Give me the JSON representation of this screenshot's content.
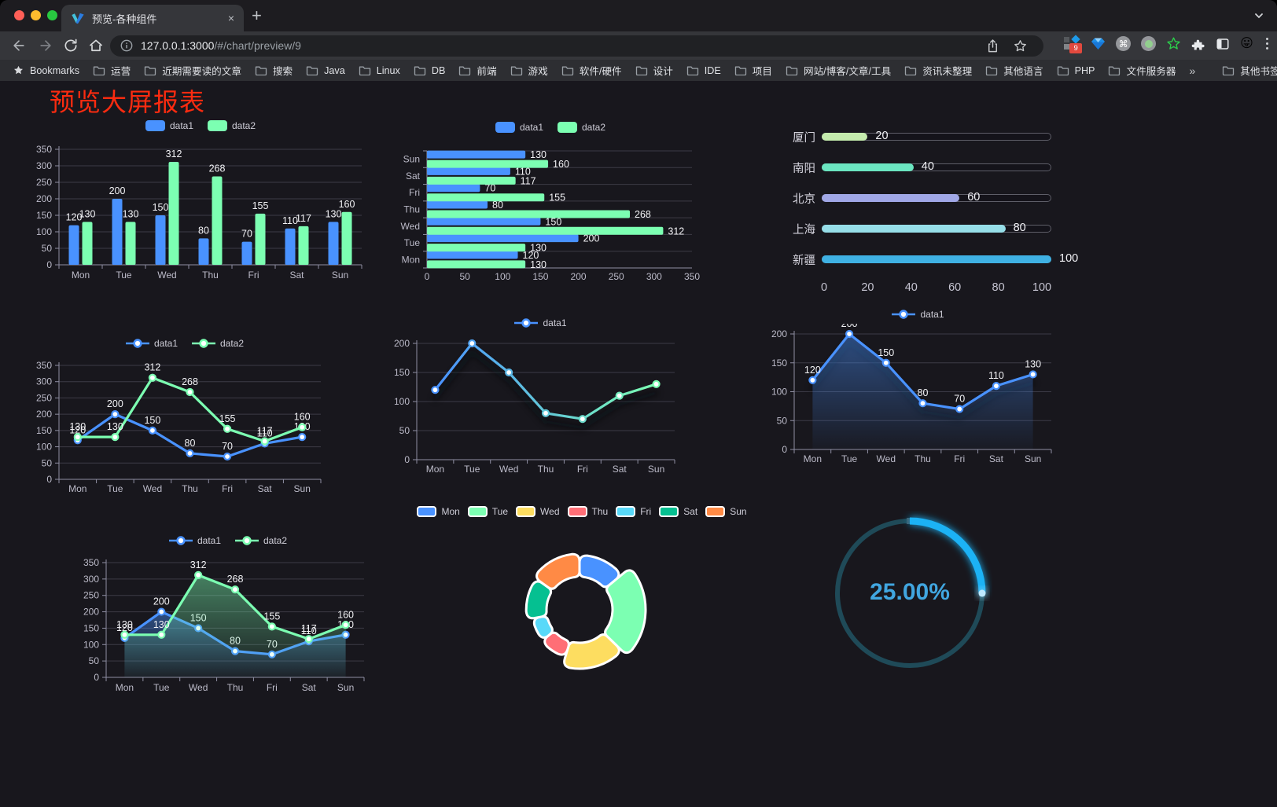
{
  "browser": {
    "tab_title": "预览-各种组件",
    "new_tab_label": "+",
    "tab_close_label": "×",
    "url_host": "127.0.0.1:3000",
    "url_path": "/#/chart/preview/9",
    "bookmarks_root": "Bookmarks",
    "bookmark_folders": [
      "运营",
      "近期需要读的文章",
      "搜索",
      "Java",
      "Linux",
      "DB",
      "前端",
      "游戏",
      "软件/硬件",
      "设计",
      "IDE",
      "项目",
      "网站/博客/文章/工具",
      "资讯未整理",
      "其他语言",
      "PHP",
      "文件服务器"
    ],
    "bookmarks_overflow": "»",
    "other_bookmarks": "其他书签",
    "extension_badge": "9",
    "window_control_colors": [
      "#ff5f57",
      "#febc2e",
      "#28c840"
    ]
  },
  "page": {
    "title": "预览大屏报表",
    "title_color": "#fb2b10",
    "background": "#18171d"
  },
  "theme": {
    "axis_text": "#bcbbc9",
    "axis_line": "#8f8fa3",
    "grid_line": "#3c3b46",
    "value_label": "#f2f2f5"
  },
  "chart_data": [
    {
      "id": "bar-vertical",
      "type": "bar",
      "categories": [
        "Mon",
        "Tue",
        "Wed",
        "Thu",
        "Fri",
        "Sat",
        "Sun"
      ],
      "series": [
        {
          "name": "data1",
          "color": "#4992ff",
          "values": [
            120,
            200,
            150,
            80,
            70,
            110,
            130
          ]
        },
        {
          "name": "data2",
          "color": "#7cffb2",
          "values": [
            130,
            130,
            312,
            268,
            155,
            117,
            160
          ]
        }
      ],
      "ylim": [
        0,
        350
      ],
      "ystep": 50,
      "legend_position": "top",
      "grid": true,
      "labels": true
    },
    {
      "id": "bar-horizontal",
      "type": "bar-horizontal",
      "categories": [
        "Mon",
        "Tue",
        "Wed",
        "Thu",
        "Fri",
        "Sat",
        "Sun"
      ],
      "display_note": "Sun shown at top, Mon at bottom",
      "series": [
        {
          "name": "data1",
          "color": "#4992ff",
          "values": [
            120,
            200,
            150,
            80,
            70,
            110,
            130
          ]
        },
        {
          "name": "data2",
          "color": "#7cffb2",
          "values": [
            130,
            130,
            312,
            268,
            155,
            117,
            160
          ]
        }
      ],
      "xlim": [
        0,
        350
      ],
      "xstep": 50,
      "legend_position": "top",
      "labels": true
    },
    {
      "id": "progress",
      "type": "progress-bars",
      "rows": [
        {
          "label": "厦门",
          "value": 20,
          "color": "#c4ebad"
        },
        {
          "label": "南阳",
          "value": 40,
          "color": "#6be6c1"
        },
        {
          "label": "北京",
          "value": 60,
          "color": "#a0a7e6"
        },
        {
          "label": "上海",
          "value": 80,
          "color": "#96dee8"
        },
        {
          "label": "新疆",
          "value": 100,
          "color": "#3fb1e3"
        }
      ],
      "xlim": [
        0,
        100
      ],
      "xticks": [
        0,
        20,
        40,
        60,
        80,
        100
      ]
    },
    {
      "id": "line-basic",
      "type": "line",
      "categories": [
        "Mon",
        "Tue",
        "Wed",
        "Thu",
        "Fri",
        "Sat",
        "Sun"
      ],
      "series": [
        {
          "name": "data1",
          "color": "#4992ff",
          "values": [
            120,
            200,
            150,
            80,
            70,
            110,
            130
          ]
        },
        {
          "name": "data2",
          "color": "#7cffb2",
          "values": [
            130,
            130,
            312,
            268,
            155,
            117,
            160
          ]
        }
      ],
      "ylim": [
        0,
        350
      ],
      "ystep": 50,
      "labels": true,
      "legend_position": "top"
    },
    {
      "id": "line-gradient",
      "type": "line",
      "categories": [
        "Mon",
        "Tue",
        "Wed",
        "Thu",
        "Fri",
        "Sat",
        "Sun"
      ],
      "series": [
        {
          "name": "data1",
          "gradient": [
            "#4992ff",
            "#7cffb2"
          ],
          "values": [
            120,
            200,
            150,
            80,
            70,
            110,
            130
          ],
          "shadow": true
        }
      ],
      "ylim": [
        0,
        200
      ],
      "ystep": 50,
      "labels": false,
      "legend_position": "top"
    },
    {
      "id": "line-area",
      "type": "line",
      "categories": [
        "Mon",
        "Tue",
        "Wed",
        "Thu",
        "Fri",
        "Sat",
        "Sun"
      ],
      "series": [
        {
          "name": "data1",
          "color": "#4992ff",
          "values": [
            120,
            200,
            150,
            80,
            70,
            110,
            130
          ],
          "area": true,
          "shadow": true
        }
      ],
      "ylim": [
        0,
        200
      ],
      "ystep": 50,
      "labels": true,
      "legend_position": "top"
    },
    {
      "id": "area-two",
      "type": "line",
      "categories": [
        "Mon",
        "Tue",
        "Wed",
        "Thu",
        "Fri",
        "Sat",
        "Sun"
      ],
      "series": [
        {
          "name": "data1",
          "color": "#4992ff",
          "values": [
            120,
            200,
            150,
            80,
            70,
            110,
            130
          ],
          "area": true
        },
        {
          "name": "data2",
          "color": "#7cffb2",
          "values": [
            130,
            130,
            312,
            268,
            155,
            117,
            160
          ],
          "area": true
        }
      ],
      "ylim": [
        0,
        350
      ],
      "ystep": 50,
      "labels": true,
      "legend_position": "top"
    },
    {
      "id": "pie-rose",
      "type": "pie",
      "items": [
        {
          "name": "Mon",
          "value": 120,
          "color": "#4992ff"
        },
        {
          "name": "Tue",
          "value": 200,
          "color": "#7cffb2"
        },
        {
          "name": "Wed",
          "value": 150,
          "color": "#fddd60"
        },
        {
          "name": "Thu",
          "value": 80,
          "color": "#ff6e76"
        },
        {
          "name": "Fri",
          "value": 70,
          "color": "#58d9f9"
        },
        {
          "name": "Sat",
          "value": 110,
          "color": "#05c091"
        },
        {
          "name": "Sun",
          "value": 130,
          "color": "#ff8a45"
        }
      ],
      "style": "rose-donut-rounded",
      "border_color": "#ffffff",
      "legend_position": "top"
    },
    {
      "id": "gauge",
      "type": "gauge",
      "value_percent": 25,
      "label": "25.00%",
      "arc_color": "#1db2f5",
      "track_color": "#1f4a58",
      "text_color": "#41a6e0"
    }
  ]
}
